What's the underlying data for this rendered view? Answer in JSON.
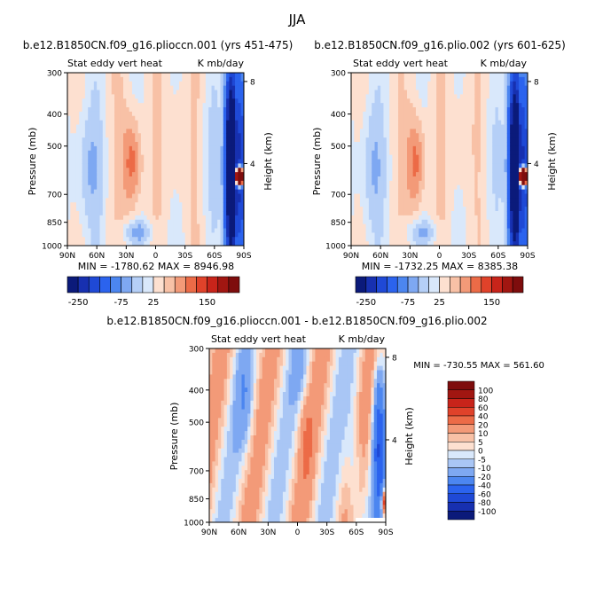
{
  "page": {
    "title": "JJA"
  },
  "colors": {
    "levels_panel": [
      "#0b1a7a",
      "#1730b0",
      "#1f49d6",
      "#2b63ee",
      "#4c86f0",
      "#7ea8f2",
      "#b5cff7",
      "#d9e8fb",
      "#fde0d0",
      "#f8c1a6",
      "#f39a78",
      "#ec6b47",
      "#e0422a",
      "#c8241a",
      "#a11611",
      "#7e0d0d"
    ],
    "levels_diff": [
      "#0b1a7a",
      "#1730b0",
      "#1f49d6",
      "#2b63ee",
      "#4c86f0",
      "#7ea8f2",
      "#a9c6f5",
      "#d9e8fb",
      "#fde0d0",
      "#f8c1a6",
      "#f39a78",
      "#ec6b47",
      "#e0422a",
      "#c8241a",
      "#a11611",
      "#7e0d0d"
    ]
  },
  "panels": [
    {
      "title": "b.e12.B1850CN.f09_g16.plioccn.001 (yrs 451-475)",
      "left_label": "Stat eddy vert heat",
      "right_label": "K mb/day",
      "ylabel": "Pressure (mb)",
      "y2label": "Height (km)",
      "yticks": [
        "300",
        "400",
        "500",
        "700",
        "850",
        "1000"
      ],
      "y2ticks": [
        "8",
        "4"
      ],
      "xticks": [
        "90N",
        "60N",
        "30N",
        "0",
        "30S",
        "60S",
        "90S"
      ],
      "stats": "MIN = -1780.62   MAX = 8946.98",
      "cbar_labels": [
        "-250",
        "-75",
        "25",
        "150"
      ]
    },
    {
      "title": "b.e12.B1850CN.f09_g16.plio.002 (yrs 601-625)",
      "left_label": "Stat eddy vert heat",
      "right_label": "K mb/day",
      "ylabel": "Pressure (mb)",
      "y2label": "Height (km)",
      "yticks": [
        "300",
        "400",
        "500",
        "700",
        "850",
        "1000"
      ],
      "y2ticks": [
        "8",
        "4"
      ],
      "xticks": [
        "90N",
        "60N",
        "30N",
        "0",
        "30S",
        "60S",
        "90S"
      ],
      "stats": "MIN = -1732.25   MAX = 8385.38",
      "cbar_labels": [
        "-250",
        "-75",
        "25",
        "150"
      ]
    },
    {
      "title": "b.e12.B1850CN.f09_g16.plioccn.001 - b.e12.B1850CN.f09_g16.plio.002",
      "left_label": "Stat eddy vert heat",
      "right_label": "K mb/day",
      "ylabel": "Pressure (mb)",
      "y2label": "Height (km)",
      "yticks": [
        "300",
        "400",
        "500",
        "700",
        "850",
        "1000"
      ],
      "y2ticks": [
        "8",
        "4"
      ],
      "xticks": [
        "90N",
        "60N",
        "30N",
        "0",
        "30S",
        "60S",
        "90S"
      ],
      "stats": "MIN = -730.55   MAX = 561.60",
      "cbar_labels": [
        "100",
        "80",
        "60",
        "40",
        "20",
        "10",
        "5",
        "0",
        "-5",
        "-10",
        "-20",
        "-40",
        "-60",
        "-80",
        "-100"
      ]
    }
  ],
  "chart_data": [
    {
      "type": "heatmap",
      "title": "b.e12.B1850CN.f09_g16.plioccn.001 (yrs 451-475)",
      "xlabel": "",
      "ylabel": "Pressure (mb)",
      "x": [
        "90N",
        "60N",
        "30N",
        "0",
        "30S",
        "60S",
        "90S"
      ],
      "y": [
        300,
        400,
        500,
        700,
        850,
        1000
      ],
      "levels": [
        -250,
        -75,
        25,
        150
      ],
      "min": -1780.62,
      "max": 8946.98
    },
    {
      "type": "heatmap",
      "title": "b.e12.B1850CN.f09_g16.plio.002 (yrs 601-625)",
      "xlabel": "",
      "ylabel": "Pressure (mb)",
      "x": [
        "90N",
        "60N",
        "30N",
        "0",
        "30S",
        "60S",
        "90S"
      ],
      "y": [
        300,
        400,
        500,
        700,
        850,
        1000
      ],
      "levels": [
        -250,
        -75,
        25,
        150
      ],
      "min": -1732.25,
      "max": 8385.38
    },
    {
      "type": "heatmap",
      "title": "b.e12.B1850CN.f09_g16.plioccn.001 - b.e12.B1850CN.f09_g16.plio.002",
      "xlabel": "",
      "ylabel": "Pressure (mb)",
      "x": [
        "90N",
        "60N",
        "30N",
        "0",
        "30S",
        "60S",
        "90S"
      ],
      "y": [
        300,
        400,
        500,
        700,
        850,
        1000
      ],
      "levels": [
        -100,
        -80,
        -60,
        -40,
        -20,
        -10,
        -5,
        0,
        5,
        10,
        20,
        40,
        60,
        80,
        100
      ],
      "min": -730.55,
      "max": 561.6
    }
  ]
}
